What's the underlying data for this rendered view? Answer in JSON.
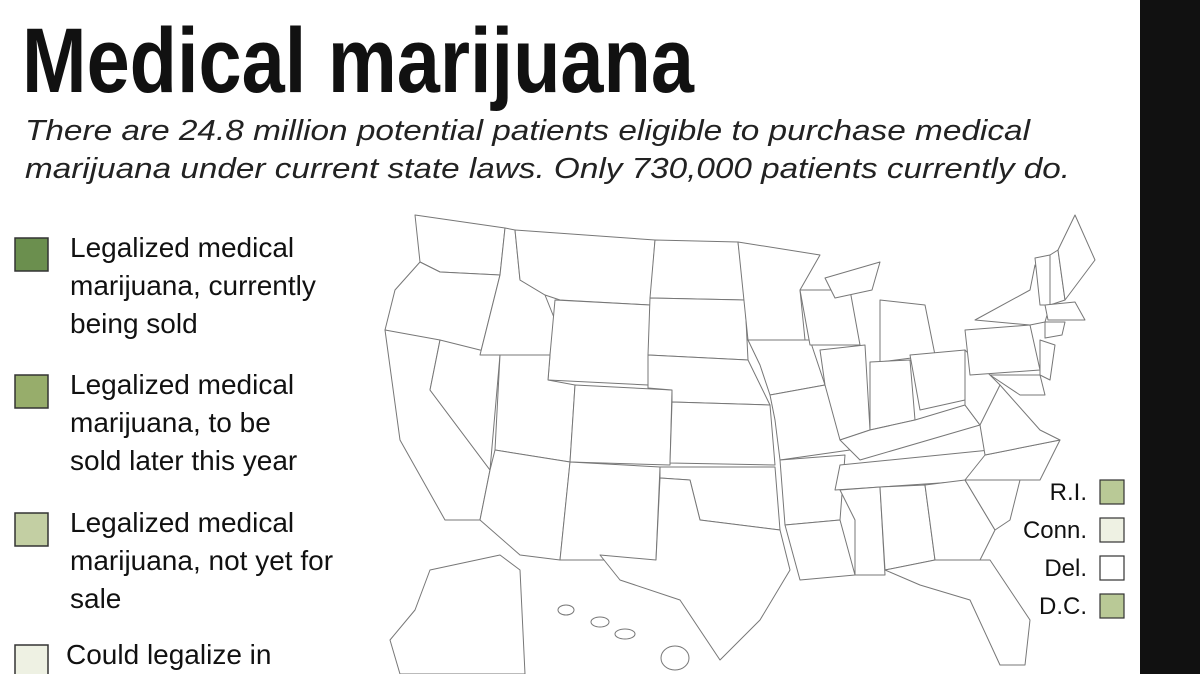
{
  "header": {
    "title": "Medical marijuana",
    "subtitle": [
      "There are 24.8 million potential patients eligible to purchase medical",
      "marijuana under current state laws. Only 730,000 patients currently do."
    ]
  },
  "legend": [
    {
      "lines": [
        "Legalized medical",
        "marijuana, currently",
        "being sold"
      ],
      "color": "#6b8f4e"
    },
    {
      "lines": [
        "Legalized medical",
        "marijuana, to be",
        "sold later this year"
      ],
      "color": "#97ad6b"
    },
    {
      "lines": [
        "Legalized medical",
        "marijuana, not yet for",
        "sale"
      ],
      "color": "#c3cfa3"
    },
    {
      "lines": [
        "Could legalize in"
      ],
      "color": "#eef1e3"
    }
  ],
  "small_states": [
    {
      "label": "R.I.",
      "color": "#b9c996"
    },
    {
      "label": "Conn.",
      "color": "#eef1e3"
    },
    {
      "label": "Del.",
      "color": "#ffffff"
    },
    {
      "label": "D.C.",
      "color": "#b9c996"
    }
  ]
}
